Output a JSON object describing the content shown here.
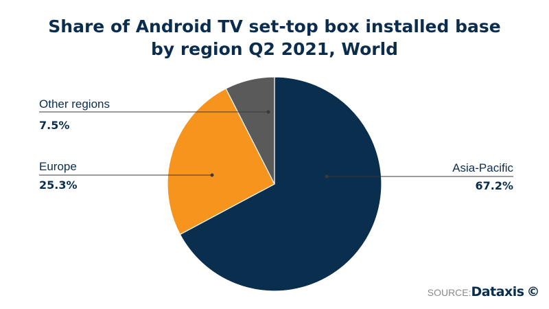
{
  "chart_data": {
    "type": "pie",
    "title": "Share of Android TV set-top box installed base by region Q2 2021, World",
    "title_lines": [
      "Share of Android TV set-top box installed base",
      "by region Q2 2021, World"
    ],
    "slices": [
      {
        "label": "Asia-Pacific",
        "value": 67.2,
        "display": "67.2%",
        "color": "#0a2e4e"
      },
      {
        "label": "Europe",
        "value": 25.3,
        "display": "25.3%",
        "color": "#f7941d"
      },
      {
        "label": "Other regions",
        "value": 7.5,
        "display": "7.5%",
        "color": "#5a5a5a"
      }
    ],
    "start": "12 o'clock, clockwise"
  },
  "source": {
    "prefix": "SOURCE:",
    "brand": "Dataxis",
    "mark": "©"
  }
}
